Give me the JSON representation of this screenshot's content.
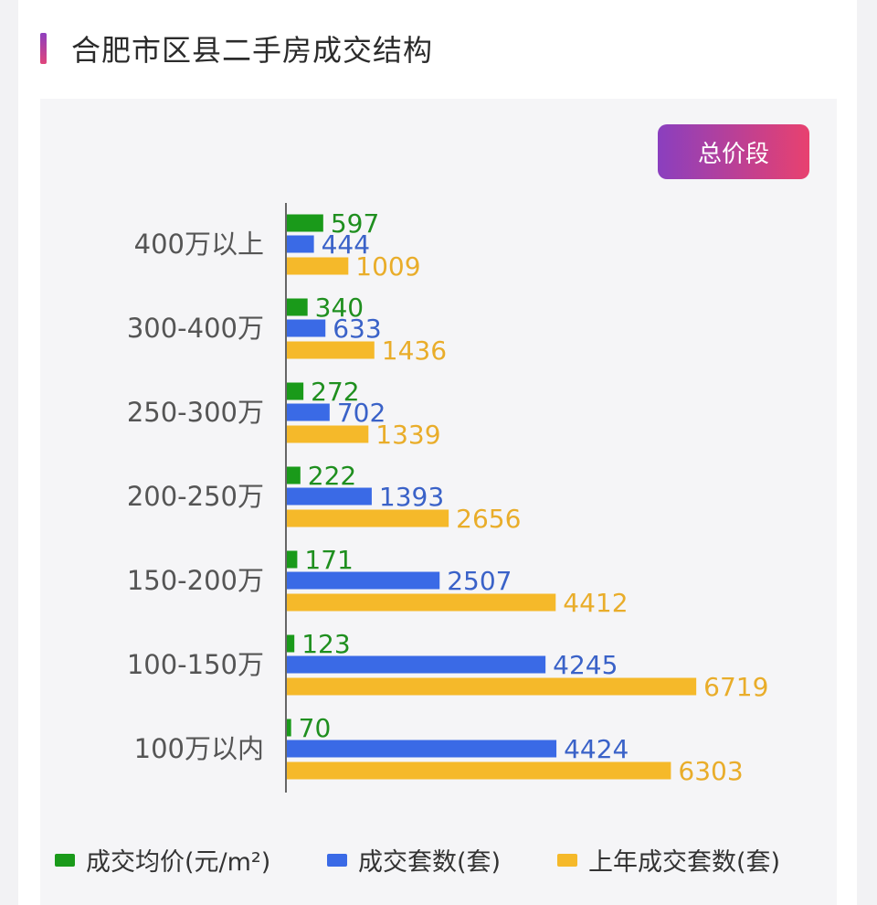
{
  "page_title": "合肥市区县二手房成交结构",
  "badge": "总价段",
  "colors": {
    "avg_price": "#1a9a1a",
    "deals": "#3a6ae6",
    "last_year": "#f5b92a",
    "avg_price_text": "#1f8f1f",
    "deals_text": "#3a62c8",
    "last_year_text": "#e9ad2a"
  },
  "chart_data": {
    "type": "bar",
    "orientation": "horizontal",
    "title": "合肥市区县二手房成交结构",
    "categories": [
      "400万以上",
      "300-400万",
      "250-300万",
      "200-250万",
      "150-200万",
      "100-150万",
      "100万以内"
    ],
    "series": [
      {
        "name": "成交均价(元/m²)",
        "key": "avg_price",
        "values": [
          597,
          340,
          272,
          222,
          171,
          123,
          70
        ]
      },
      {
        "name": "成交套数(套)",
        "key": "deals",
        "values": [
          444,
          633,
          702,
          1393,
          2507,
          4245,
          4424
        ]
      },
      {
        "name": "上年成交套数(套)",
        "key": "last_year",
        "values": [
          1009,
          1436,
          1339,
          2656,
          4412,
          6719,
          6303
        ]
      }
    ],
    "legend_position": "bottom",
    "grid": false
  }
}
